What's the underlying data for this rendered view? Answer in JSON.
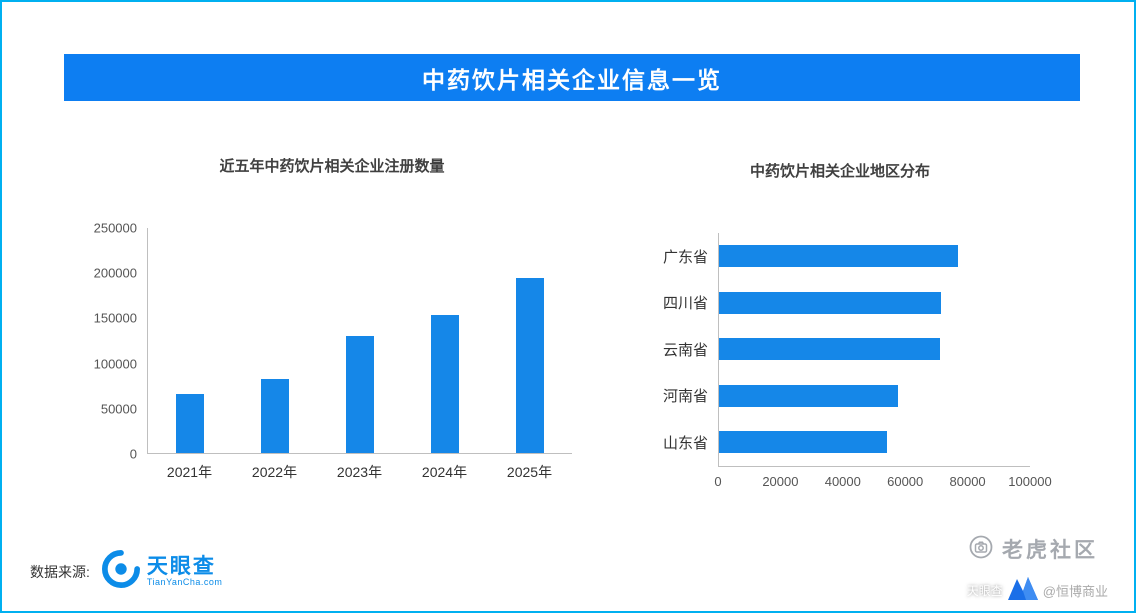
{
  "page": {
    "border_color": "#00b0f0",
    "background": "#ffffff"
  },
  "banner": {
    "title": "中药饮片相关企业信息一览",
    "background": "#0d7ef2",
    "text_color": "#ffffff"
  },
  "chart_data": [
    {
      "type": "bar",
      "title": "近五年中药饮片相关企业注册数量",
      "categories": [
        "2021年",
        "2022年",
        "2023年",
        "2024年",
        "2025年"
      ],
      "values": [
        66000,
        82000,
        130000,
        153000,
        194000
      ],
      "xlabel": "",
      "ylabel": "",
      "ylim": [
        0,
        250000
      ],
      "yticks": [
        0,
        50000,
        100000,
        150000,
        200000,
        250000
      ],
      "bar_color": "#1587e8",
      "grid": false,
      "legend": "none"
    },
    {
      "type": "bar-horizontal",
      "title": "中药饮片相关企业地区分布",
      "categories": [
        "广东省",
        "四川省",
        "云南省",
        "河南省",
        "山东省"
      ],
      "values": [
        77000,
        71500,
        71000,
        57500,
        54000
      ],
      "xlabel": "",
      "ylabel": "",
      "xlim": [
        0,
        100000
      ],
      "xticks": [
        0,
        20000,
        40000,
        60000,
        80000,
        100000
      ],
      "bar_color": "#1587e8",
      "grid": false,
      "legend": "none"
    }
  ],
  "footer": {
    "source_label": "数据来源:",
    "logo_name": "天眼查",
    "logo_domain": "TianYanCha.com",
    "logo_color": "#0c8ce8"
  },
  "watermarks": {
    "community": "老虎社区",
    "brand": "天眼查",
    "handle": "@恒博商业"
  }
}
